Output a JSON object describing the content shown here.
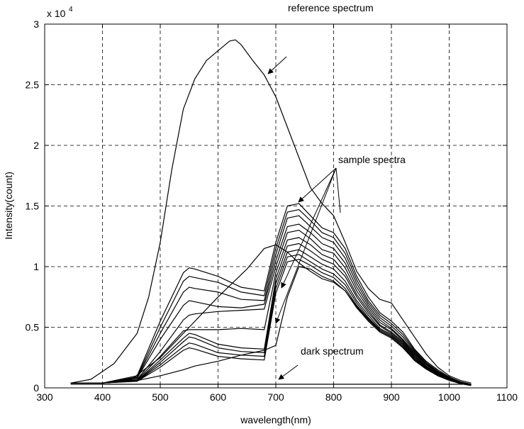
{
  "chart_data": {
    "type": "line",
    "title": "",
    "xlabel": "wavelength(nm)",
    "ylabel": "Intensity(count)",
    "y_multiplier_label": "x 10",
    "y_multiplier_exponent": "4",
    "xlim": [
      300,
      1100
    ],
    "ylim": [
      0,
      30000
    ],
    "grid": true,
    "x_ticks": [
      300,
      400,
      500,
      600,
      700,
      800,
      900,
      1000,
      1100
    ],
    "y_ticks": [
      0,
      5000,
      10000,
      15000,
      20000,
      25000,
      30000
    ],
    "y_tick_labels": [
      "0",
      "0.5",
      "1",
      "1.5",
      "2",
      "2.5",
      "3"
    ],
    "series": [
      {
        "name": "reference spectrum",
        "x": [
          345,
          380,
          420,
          460,
          480,
          500,
          520,
          540,
          560,
          580,
          600,
          620,
          630,
          640,
          660,
          680,
          700,
          720,
          740,
          760,
          780,
          800,
          820,
          840,
          860,
          880,
          900,
          920,
          940,
          960,
          980,
          1000,
          1020,
          1038
        ],
        "y": [
          400,
          700,
          2000,
          4500,
          7500,
          12000,
          18000,
          23000,
          25500,
          27000,
          27800,
          28600,
          28700,
          28300,
          27000,
          25800,
          24000,
          21500,
          19000,
          16500,
          15200,
          14200,
          12000,
          9600,
          8200,
          7300,
          7000,
          5600,
          4200,
          2800,
          1700,
          1000,
          600,
          400
        ]
      },
      {
        "name": "",
        "x": [
          345,
          400,
          460,
          500,
          540,
          550,
          560,
          600,
          640,
          680,
          700,
          720,
          740,
          760,
          780,
          800,
          820,
          840,
          860,
          880,
          900,
          920,
          940,
          960,
          980,
          1000,
          1020,
          1038
        ],
        "y": [
          400,
          400,
          1000,
          5500,
          9500,
          9900,
          9800,
          9200,
          8300,
          8000,
          12000,
          15000,
          15200,
          14200,
          13200,
          12800,
          11500,
          9200,
          7500,
          6200,
          5500,
          4600,
          3200,
          2200,
          1500,
          900,
          500,
          300
        ]
      },
      {
        "name": "",
        "x": [
          345,
          400,
          460,
          500,
          540,
          550,
          560,
          600,
          640,
          680,
          700,
          720,
          740,
          760,
          780,
          800,
          820,
          840,
          860,
          880,
          900,
          920,
          940,
          960,
          980,
          1000,
          1020,
          1038
        ],
        "y": [
          400,
          400,
          900,
          5000,
          8800,
          9200,
          9100,
          8700,
          7900,
          7600,
          11500,
          14500,
          14700,
          13800,
          12800,
          12400,
          11100,
          8900,
          7200,
          6000,
          5300,
          4400,
          3100,
          2100,
          1400,
          850,
          480,
          300
        ]
      },
      {
        "name": "",
        "x": [
          345,
          400,
          460,
          500,
          540,
          550,
          560,
          600,
          640,
          680,
          700,
          720,
          740,
          760,
          780,
          800,
          820,
          840,
          860,
          880,
          900,
          920,
          940,
          960,
          980,
          1000,
          1020,
          1038
        ],
        "y": [
          400,
          400,
          850,
          4500,
          7900,
          8300,
          8200,
          7900,
          7300,
          7200,
          11000,
          14000,
          14200,
          13300,
          12400,
          12000,
          10700,
          8600,
          7000,
          5800,
          5100,
          4200,
          3000,
          2000,
          1350,
          800,
          450,
          280
        ]
      },
      {
        "name": "",
        "x": [
          345,
          400,
          460,
          500,
          540,
          550,
          560,
          600,
          640,
          680,
          700,
          720,
          740,
          760,
          780,
          800,
          820,
          840,
          860,
          880,
          900,
          920,
          940,
          960,
          980,
          1000,
          1020,
          1038
        ],
        "y": [
          400,
          400,
          800,
          4000,
          6800,
          7200,
          7100,
          6700,
          6600,
          6900,
          10500,
          13300,
          13500,
          12800,
          11900,
          11500,
          10300,
          8300,
          6800,
          5600,
          4900,
          4000,
          2900,
          1950,
          1300,
          780,
          430,
          270
        ]
      },
      {
        "name": "",
        "x": [
          345,
          400,
          460,
          500,
          540,
          550,
          560,
          600,
          640,
          680,
          700,
          720,
          740,
          760,
          780,
          800,
          820,
          840,
          860,
          880,
          900,
          920,
          940,
          960,
          980,
          1000,
          1020,
          1038
        ],
        "y": [
          400,
          400,
          700,
          3000,
          5600,
          6000,
          6100,
          6300,
          6400,
          6500,
          10000,
          12800,
          13000,
          12300,
          11400,
          11100,
          9900,
          8000,
          6600,
          5400,
          4800,
          3900,
          2800,
          1900,
          1250,
          750,
          420,
          260
        ]
      },
      {
        "name": "",
        "x": [
          345,
          400,
          460,
          500,
          540,
          550,
          560,
          600,
          640,
          680,
          700,
          720,
          740,
          760,
          780,
          800,
          820,
          840,
          860,
          880,
          900,
          920,
          940,
          960,
          980,
          1000,
          1020,
          1038
        ],
        "y": [
          400,
          400,
          650,
          2600,
          4700,
          4800,
          4800,
          4800,
          4900,
          4800,
          9500,
          12200,
          12400,
          11800,
          11000,
          10600,
          9500,
          7700,
          6400,
          5200,
          4600,
          3800,
          2700,
          1800,
          1200,
          720,
          400,
          250
        ]
      },
      {
        "name": "",
        "x": [
          345,
          400,
          460,
          500,
          540,
          550,
          560,
          600,
          640,
          680,
          700,
          720,
          740,
          760,
          780,
          800,
          820,
          840,
          860,
          880,
          900,
          920,
          940,
          960,
          980,
          1000,
          1020,
          1038
        ],
        "y": [
          400,
          400,
          600,
          2300,
          4100,
          4500,
          4400,
          3600,
          3300,
          3200,
          9000,
          11700,
          11900,
          11300,
          10600,
          10200,
          9200,
          7500,
          6200,
          5100,
          4500,
          3700,
          2600,
          1750,
          1150,
          700,
          380,
          240
        ]
      },
      {
        "name": "",
        "x": [
          345,
          400,
          460,
          500,
          540,
          550,
          560,
          600,
          640,
          680,
          700,
          720,
          740,
          760,
          780,
          800,
          820,
          840,
          860,
          880,
          900,
          920,
          940,
          960,
          980,
          1000,
          1020,
          1038
        ],
        "y": [
          400,
          400,
          580,
          2100,
          3800,
          4200,
          4100,
          3300,
          3000,
          2900,
          8600,
          11200,
          11400,
          10800,
          10200,
          9800,
          8800,
          7200,
          6000,
          4900,
          4400,
          3600,
          2500,
          1700,
          1100,
          680,
          370,
          230
        ]
      },
      {
        "name": "",
        "x": [
          345,
          400,
          460,
          500,
          540,
          550,
          560,
          600,
          640,
          680,
          700,
          720,
          740,
          760,
          780,
          800,
          820,
          840,
          860,
          880,
          900,
          920,
          940,
          960,
          980,
          1000,
          1020,
          1038
        ],
        "y": [
          400,
          400,
          560,
          1900,
          3400,
          3700,
          3600,
          2900,
          2700,
          2600,
          8200,
          10800,
          11000,
          10400,
          9800,
          9400,
          8500,
          7000,
          5800,
          4800,
          4300,
          3500,
          2400,
          1650,
          1080,
          660,
          360,
          220
        ]
      },
      {
        "name": "",
        "x": [
          345,
          400,
          460,
          500,
          540,
          550,
          560,
          600,
          640,
          680,
          700,
          720,
          740,
          760,
          780,
          800,
          820,
          840,
          860,
          880,
          900,
          920,
          940,
          960,
          980,
          1000,
          1020,
          1038
        ],
        "y": [
          400,
          400,
          540,
          1700,
          3100,
          3300,
          3200,
          2600,
          2400,
          2300,
          7800,
          10400,
          10600,
          10100,
          9500,
          9100,
          8200,
          6800,
          5700,
          4700,
          4200,
          3400,
          2300,
          1600,
          1050,
          640,
          350,
          210
        ]
      },
      {
        "name": "",
        "x": [
          345,
          400,
          460,
          500,
          540,
          560,
          600,
          640,
          680,
          700,
          720,
          740,
          760,
          780,
          800,
          820,
          840,
          860,
          880,
          900,
          920,
          940,
          960,
          980,
          1000,
          1020,
          1038
        ],
        "y": [
          400,
          400,
          600,
          1000,
          1500,
          1800,
          2200,
          2700,
          3100,
          3500,
          7500,
          10000,
          9800,
          9200,
          8800,
          8000,
          6600,
          5500,
          4600,
          4100,
          3300,
          2250,
          1550,
          1000,
          620,
          340,
          200
        ]
      },
      {
        "name": "",
        "x": [
          345,
          400,
          450,
          500,
          550,
          600,
          650,
          680,
          700,
          720,
          740,
          760,
          780,
          800,
          820,
          840,
          860,
          880,
          900,
          920,
          940,
          960,
          980,
          1000,
          1020,
          1038
        ],
        "y": [
          400,
          400,
          700,
          2500,
          5000,
          7500,
          9800,
          11500,
          11800,
          11200,
          10300,
          9600,
          9000,
          8700,
          8000,
          6700,
          5600,
          4700,
          4200,
          3400,
          2300,
          1600,
          1050,
          640,
          350,
          200
        ]
      },
      {
        "name": "dark spectrum",
        "x": [
          345,
          500,
          700,
          900,
          1038
        ],
        "y": [
          300,
          300,
          300,
          300,
          300
        ]
      }
    ],
    "annotations": [
      {
        "text": "reference spectrum",
        "target_x": 680,
        "target_y": 25600
      },
      {
        "text": "sample spectra",
        "targets": [
          [
            723,
            15300
          ],
          [
            700,
            8000
          ],
          [
            720,
            5000
          ]
        ]
      },
      {
        "text": "dark spectrum",
        "target_x": 700,
        "target_y": 300
      }
    ]
  }
}
